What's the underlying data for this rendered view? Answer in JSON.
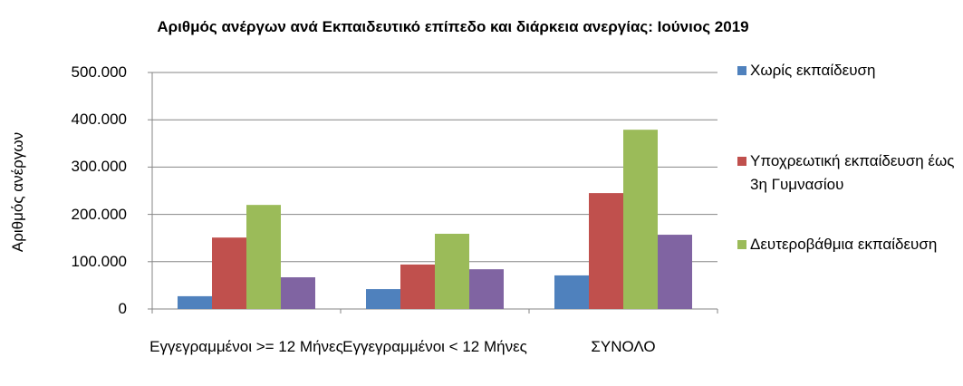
{
  "chart_data": {
    "type": "bar",
    "title": "Αριθμός ανέργων ανά Εκπαιδευτικό επίπεδο και διάρκεια ανεργίας:  Ιούνιος 2019",
    "y_label": "Αριθμός ανέργων",
    "categories": [
      "Εγγεγραμμένοι >= 12 Μήνες",
      "Εγγεγραμμένοι < 12 Μήνες",
      "ΣΥΝΟΛΟ"
    ],
    "series": [
      {
        "name": "Χωρίς εκπαίδευση",
        "color": "#4f81bd",
        "values": [
          27000,
          42000,
          71000
        ]
      },
      {
        "name": "Υποχρεωτική εκπαίδευση έως 3η Γυμνασίου",
        "color": "#c0504d",
        "values": [
          151000,
          94000,
          245000
        ]
      },
      {
        "name": "Δευτεροβάθμια εκπαίδευση",
        "color": "#9bbb59",
        "values": [
          220000,
          159000,
          379000
        ]
      },
      {
        "color": "#8064a2",
        "values": [
          67000,
          84000,
          157000
        ]
      }
    ],
    "ylim": [
      0,
      500000
    ],
    "yticks": [
      0,
      {
        "value": 100000,
        "label": "100.000"
      },
      {
        "value": 200000,
        "label": "200.000"
      },
      {
        "value": 300000,
        "label": "300.000"
      },
      {
        "value": 400000,
        "label": "400.000"
      },
      {
        "value": 500000,
        "label": "500.000"
      }
    ],
    "grid": true,
    "legend": "right"
  }
}
